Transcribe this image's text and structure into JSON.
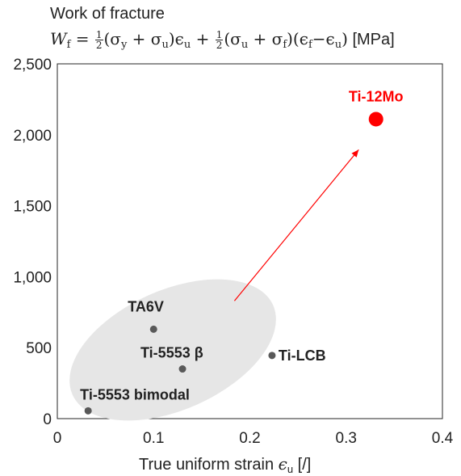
{
  "title_line": "Work of fracture",
  "formula": {
    "lhs": "W",
    "lhs_sub": "f",
    "eq": " = ",
    "frac_num": "1",
    "frac_den": "2",
    "term1": "(σ",
    "term1_sub": "y",
    "term1b": " + σ",
    "term1b_sub": "u",
    "term1c": ")ϵ",
    "term1c_sub": "u",
    "plus": " + ",
    "term2": "(σ",
    "term2_sub": "u",
    "term2b": " + σ",
    "term2b_sub": "f",
    "term2c": ")(ϵ",
    "term2c_sub": "f",
    "term2d": "−ϵ",
    "term2d_sub": "u",
    "term2e": ")",
    "unit": " [MPa]"
  },
  "xlabel_text": "True uniform strain ",
  "xlabel_symbol": "ϵ",
  "xlabel_sub": "u",
  "xlabel_unit": " [/]",
  "chart_data": {
    "type": "scatter",
    "xlim": [
      0,
      0.4
    ],
    "ylim": [
      0,
      2500
    ],
    "x_ticks": [
      0,
      0.1,
      0.2,
      0.3,
      0.4
    ],
    "x_tick_labels": [
      "0",
      "0.1",
      "0.2",
      "0.3",
      "0.4"
    ],
    "y_ticks": [
      0,
      500,
      1000,
      1500,
      2000,
      2500
    ],
    "y_tick_labels": [
      "0",
      "500",
      "1,000",
      "1,500",
      "2,000",
      "2,500"
    ],
    "grid": false,
    "points": [
      {
        "label": "TA6V",
        "x": 0.1,
        "y": 630,
        "color": "#595959"
      },
      {
        "label": "Ti-5553 β",
        "x": 0.13,
        "y": 350,
        "color": "#595959"
      },
      {
        "label": "Ti-5553 bimodal",
        "x": 0.032,
        "y": 55,
        "color": "#595959"
      },
      {
        "label": "Ti-LCB",
        "x": 0.223,
        "y": 445,
        "color": "#595959"
      },
      {
        "label": "Ti-12Mo",
        "x": 0.331,
        "y": 2110,
        "color": "#ff0000"
      }
    ],
    "arrow": {
      "from": [
        0.184,
        830
      ],
      "to": [
        0.313,
        1895
      ],
      "color": "#ff0000"
    },
    "ellipse_group": [
      "TA6V",
      "Ti-5553 β",
      "Ti-5553 bimodal",
      "Ti-LCB"
    ],
    "colors": {
      "group_fill": "#e6e6e6",
      "marker": "#595959",
      "highlight": "#ff0000"
    }
  }
}
